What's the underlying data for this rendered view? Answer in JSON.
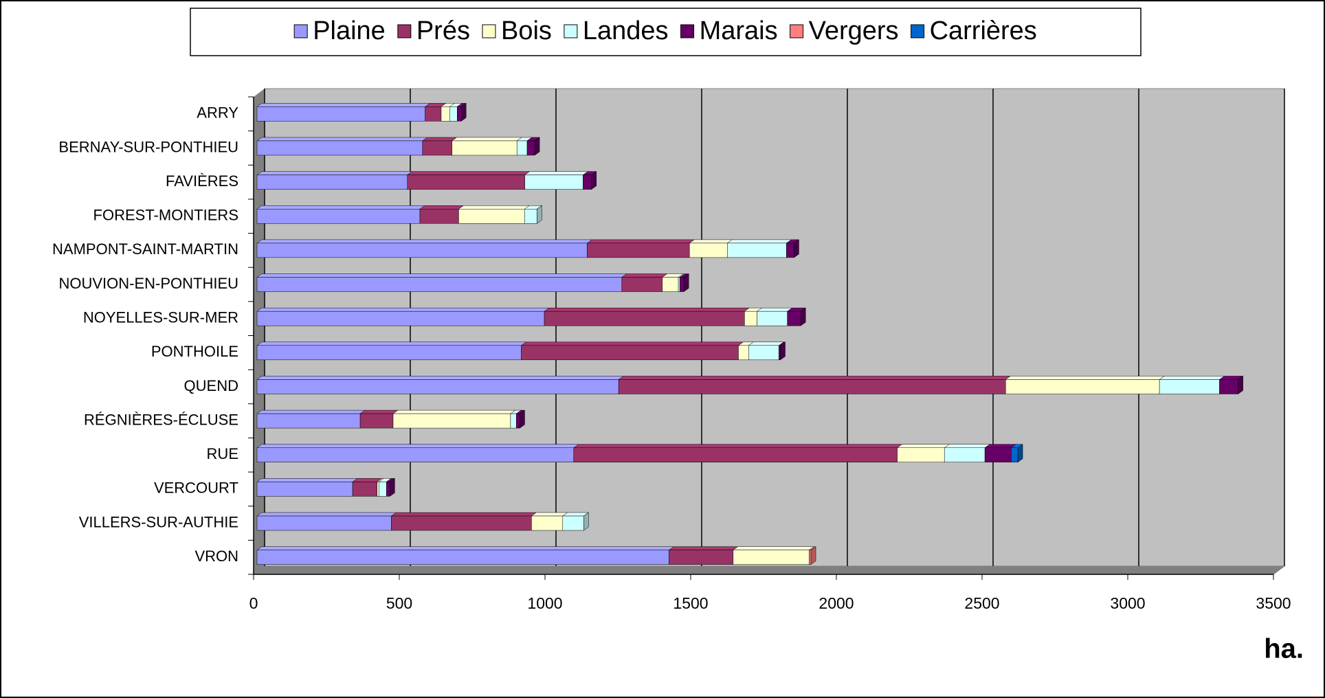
{
  "chart_data": {
    "type": "bar",
    "orientation": "horizontal",
    "stacked": true,
    "x_label": "ha.",
    "legend": "top",
    "categories": [
      "ARRY",
      "BERNAY-SUR-PONTHIEU",
      "FAVIÈRES",
      "FOREST-MONTIERS",
      "NAMPONT-SAINT-MARTIN",
      "NOUVION-EN-PONTHIEU",
      "NOYELLES-SUR-MER",
      "PONTHOILE",
      "QUEND",
      "RÉGNIÈRES-ÉCLUSE",
      "RUE",
      "VERCOURT",
      "VILLERS-SUR-AUTHIE",
      "VRON"
    ],
    "series": [
      {
        "name": "Plaine",
        "color": "#9999ff",
        "values": [
          577,
          568,
          516,
          559,
          1133,
          1252,
          986,
          907,
          1241,
          354,
          1087,
          328,
          461,
          1414
        ]
      },
      {
        "name": "Prés",
        "color": "#993366",
        "values": [
          55,
          101,
          403,
          133,
          351,
          139,
          687,
          745,
          1328,
          113,
          1110,
          84,
          481,
          220
        ]
      },
      {
        "name": "Bois",
        "color": "#ffffcc",
        "values": [
          29,
          223,
          0,
          226,
          130,
          55,
          43,
          35,
          528,
          403,
          162,
          6,
          107,
          261
        ]
      },
      {
        "name": "Landes",
        "color": "#ccffff",
        "values": [
          26,
          35,
          200,
          43,
          203,
          5,
          104,
          104,
          206,
          20,
          139,
          26,
          72,
          0
        ]
      },
      {
        "name": "Marais",
        "color": "#660066",
        "values": [
          14,
          26,
          29,
          0,
          26,
          14,
          46,
          5,
          64,
          12,
          90,
          12,
          0,
          0
        ]
      },
      {
        "name": "Vergers",
        "color": "#ff8080",
        "values": [
          0,
          0,
          0,
          0,
          0,
          0,
          0,
          0,
          0,
          0,
          0,
          0,
          0,
          6
        ]
      },
      {
        "name": "Carrières",
        "color": "#0066cc",
        "values": [
          0,
          0,
          0,
          0,
          0,
          0,
          0,
          0,
          0,
          0,
          23,
          0,
          0,
          0
        ]
      }
    ],
    "xlim": [
      0,
      3500
    ],
    "xticks": [
      0,
      500,
      1000,
      1500,
      2000,
      2500,
      3000,
      3500
    ],
    "grid": true
  }
}
